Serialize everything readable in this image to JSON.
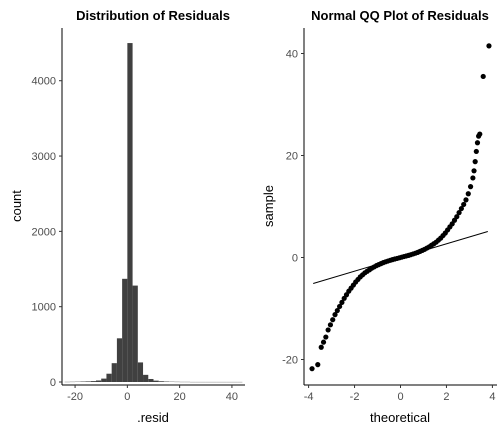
{
  "chart_data": [
    {
      "type": "bar",
      "title": "Distribution of Residuals",
      "xlabel": ".resid",
      "ylabel": "count",
      "xlim": [
        -25,
        45
      ],
      "ylim": [
        0,
        4700
      ],
      "x_ticks": [
        -20,
        0,
        20,
        40
      ],
      "y_ticks": [
        0,
        1000,
        2000,
        3000,
        4000
      ],
      "x_tick_labels": [
        "-20",
        "0",
        "20",
        "40"
      ],
      "y_tick_labels": [
        "0",
        "1000",
        "2000",
        "3000",
        "4000"
      ],
      "bin_width": 2,
      "bin_centers": [
        -23,
        -21,
        -19,
        -17,
        -15,
        -13,
        -11,
        -9,
        -7,
        -5,
        -3,
        -1,
        1,
        3,
        5,
        7,
        9,
        11,
        13,
        15,
        17,
        19,
        21,
        23,
        25,
        27,
        29,
        31,
        33,
        35,
        37,
        39,
        41,
        43
      ],
      "values": [
        2,
        3,
        4,
        6,
        8,
        12,
        20,
        45,
        110,
        250,
        580,
        1370,
        4500,
        1280,
        260,
        95,
        40,
        18,
        10,
        6,
        4,
        3,
        2,
        2,
        1,
        1,
        1,
        1,
        1,
        1,
        1,
        1,
        1,
        1
      ],
      "grid": false,
      "legend": "none"
    },
    {
      "type": "scatter",
      "title": "Normal QQ Plot of Residuals",
      "xlabel": "theoretical",
      "ylabel": "sample",
      "xlim": [
        -4.2,
        4.2
      ],
      "ylim": [
        -25,
        45
      ],
      "x_ticks": [
        -4,
        -2,
        0,
        2,
        4
      ],
      "y_ticks": [
        -20,
        0,
        20,
        40
      ],
      "x_tick_labels": [
        "-4",
        "-2",
        "0",
        "2",
        "4"
      ],
      "y_tick_labels": [
        "-20",
        "0",
        "20",
        "40"
      ],
      "reference_line": {
        "x": [
          -3.8,
          3.8
        ],
        "y": [
          -5.1,
          5.1
        ]
      },
      "points": [
        [
          -3.85,
          -21.8
        ],
        [
          -3.6,
          -21.0
        ],
        [
          -3.45,
          -17.6
        ],
        [
          -3.35,
          -16.6
        ],
        [
          -3.25,
          -15.6
        ],
        [
          -3.15,
          -14.2
        ],
        [
          -3.05,
          -13.2
        ],
        [
          -2.95,
          -12.2
        ],
        [
          -2.85,
          -11.2
        ],
        [
          -2.75,
          -10.4
        ],
        [
          -2.65,
          -9.6
        ],
        [
          -2.55,
          -8.8
        ],
        [
          -2.45,
          -8.0
        ],
        [
          -2.35,
          -7.3
        ],
        [
          -2.25,
          -6.6
        ],
        [
          -2.15,
          -6.0
        ],
        [
          -2.05,
          -5.4
        ],
        [
          -1.95,
          -4.8
        ],
        [
          -1.85,
          -4.3
        ],
        [
          -1.75,
          -3.8
        ],
        [
          -1.65,
          -3.4
        ],
        [
          -1.55,
          -3.0
        ],
        [
          -1.45,
          -2.7
        ],
        [
          -1.35,
          -2.4
        ],
        [
          -1.25,
          -2.1
        ],
        [
          -1.15,
          -1.85
        ],
        [
          -1.05,
          -1.6
        ],
        [
          -0.95,
          -1.4
        ],
        [
          -0.85,
          -1.2
        ],
        [
          -0.75,
          -1.0
        ],
        [
          -0.65,
          -0.85
        ],
        [
          -0.55,
          -0.7
        ],
        [
          -0.45,
          -0.55
        ],
        [
          -0.35,
          -0.42
        ],
        [
          -0.25,
          -0.3
        ],
        [
          -0.15,
          -0.18
        ],
        [
          -0.05,
          -0.06
        ],
        [
          0.05,
          0.06
        ],
        [
          0.15,
          0.18
        ],
        [
          0.25,
          0.3
        ],
        [
          0.35,
          0.42
        ],
        [
          0.45,
          0.55
        ],
        [
          0.55,
          0.7
        ],
        [
          0.65,
          0.85
        ],
        [
          0.75,
          1.0
        ],
        [
          0.85,
          1.2
        ],
        [
          0.95,
          1.4
        ],
        [
          1.05,
          1.6
        ],
        [
          1.15,
          1.85
        ],
        [
          1.25,
          2.1
        ],
        [
          1.35,
          2.4
        ],
        [
          1.45,
          2.7
        ],
        [
          1.55,
          3.0
        ],
        [
          1.65,
          3.4
        ],
        [
          1.75,
          3.8
        ],
        [
          1.85,
          4.3
        ],
        [
          1.95,
          4.8
        ],
        [
          2.05,
          5.4
        ],
        [
          2.15,
          6.0
        ],
        [
          2.25,
          6.6
        ],
        [
          2.35,
          7.3
        ],
        [
          2.45,
          8.0
        ],
        [
          2.55,
          8.8
        ],
        [
          2.65,
          9.6
        ],
        [
          2.75,
          10.4
        ],
        [
          2.85,
          11.3
        ],
        [
          2.95,
          12.5
        ],
        [
          3.05,
          13.9
        ],
        [
          3.15,
          15.6
        ],
        [
          3.2,
          17.0
        ],
        [
          3.25,
          18.8
        ],
        [
          3.3,
          20.8
        ],
        [
          3.35,
          22.5
        ],
        [
          3.4,
          23.8
        ],
        [
          3.45,
          24.2
        ],
        [
          3.6,
          35.5
        ],
        [
          3.85,
          41.5
        ]
      ],
      "grid": false,
      "legend": "none"
    }
  ]
}
